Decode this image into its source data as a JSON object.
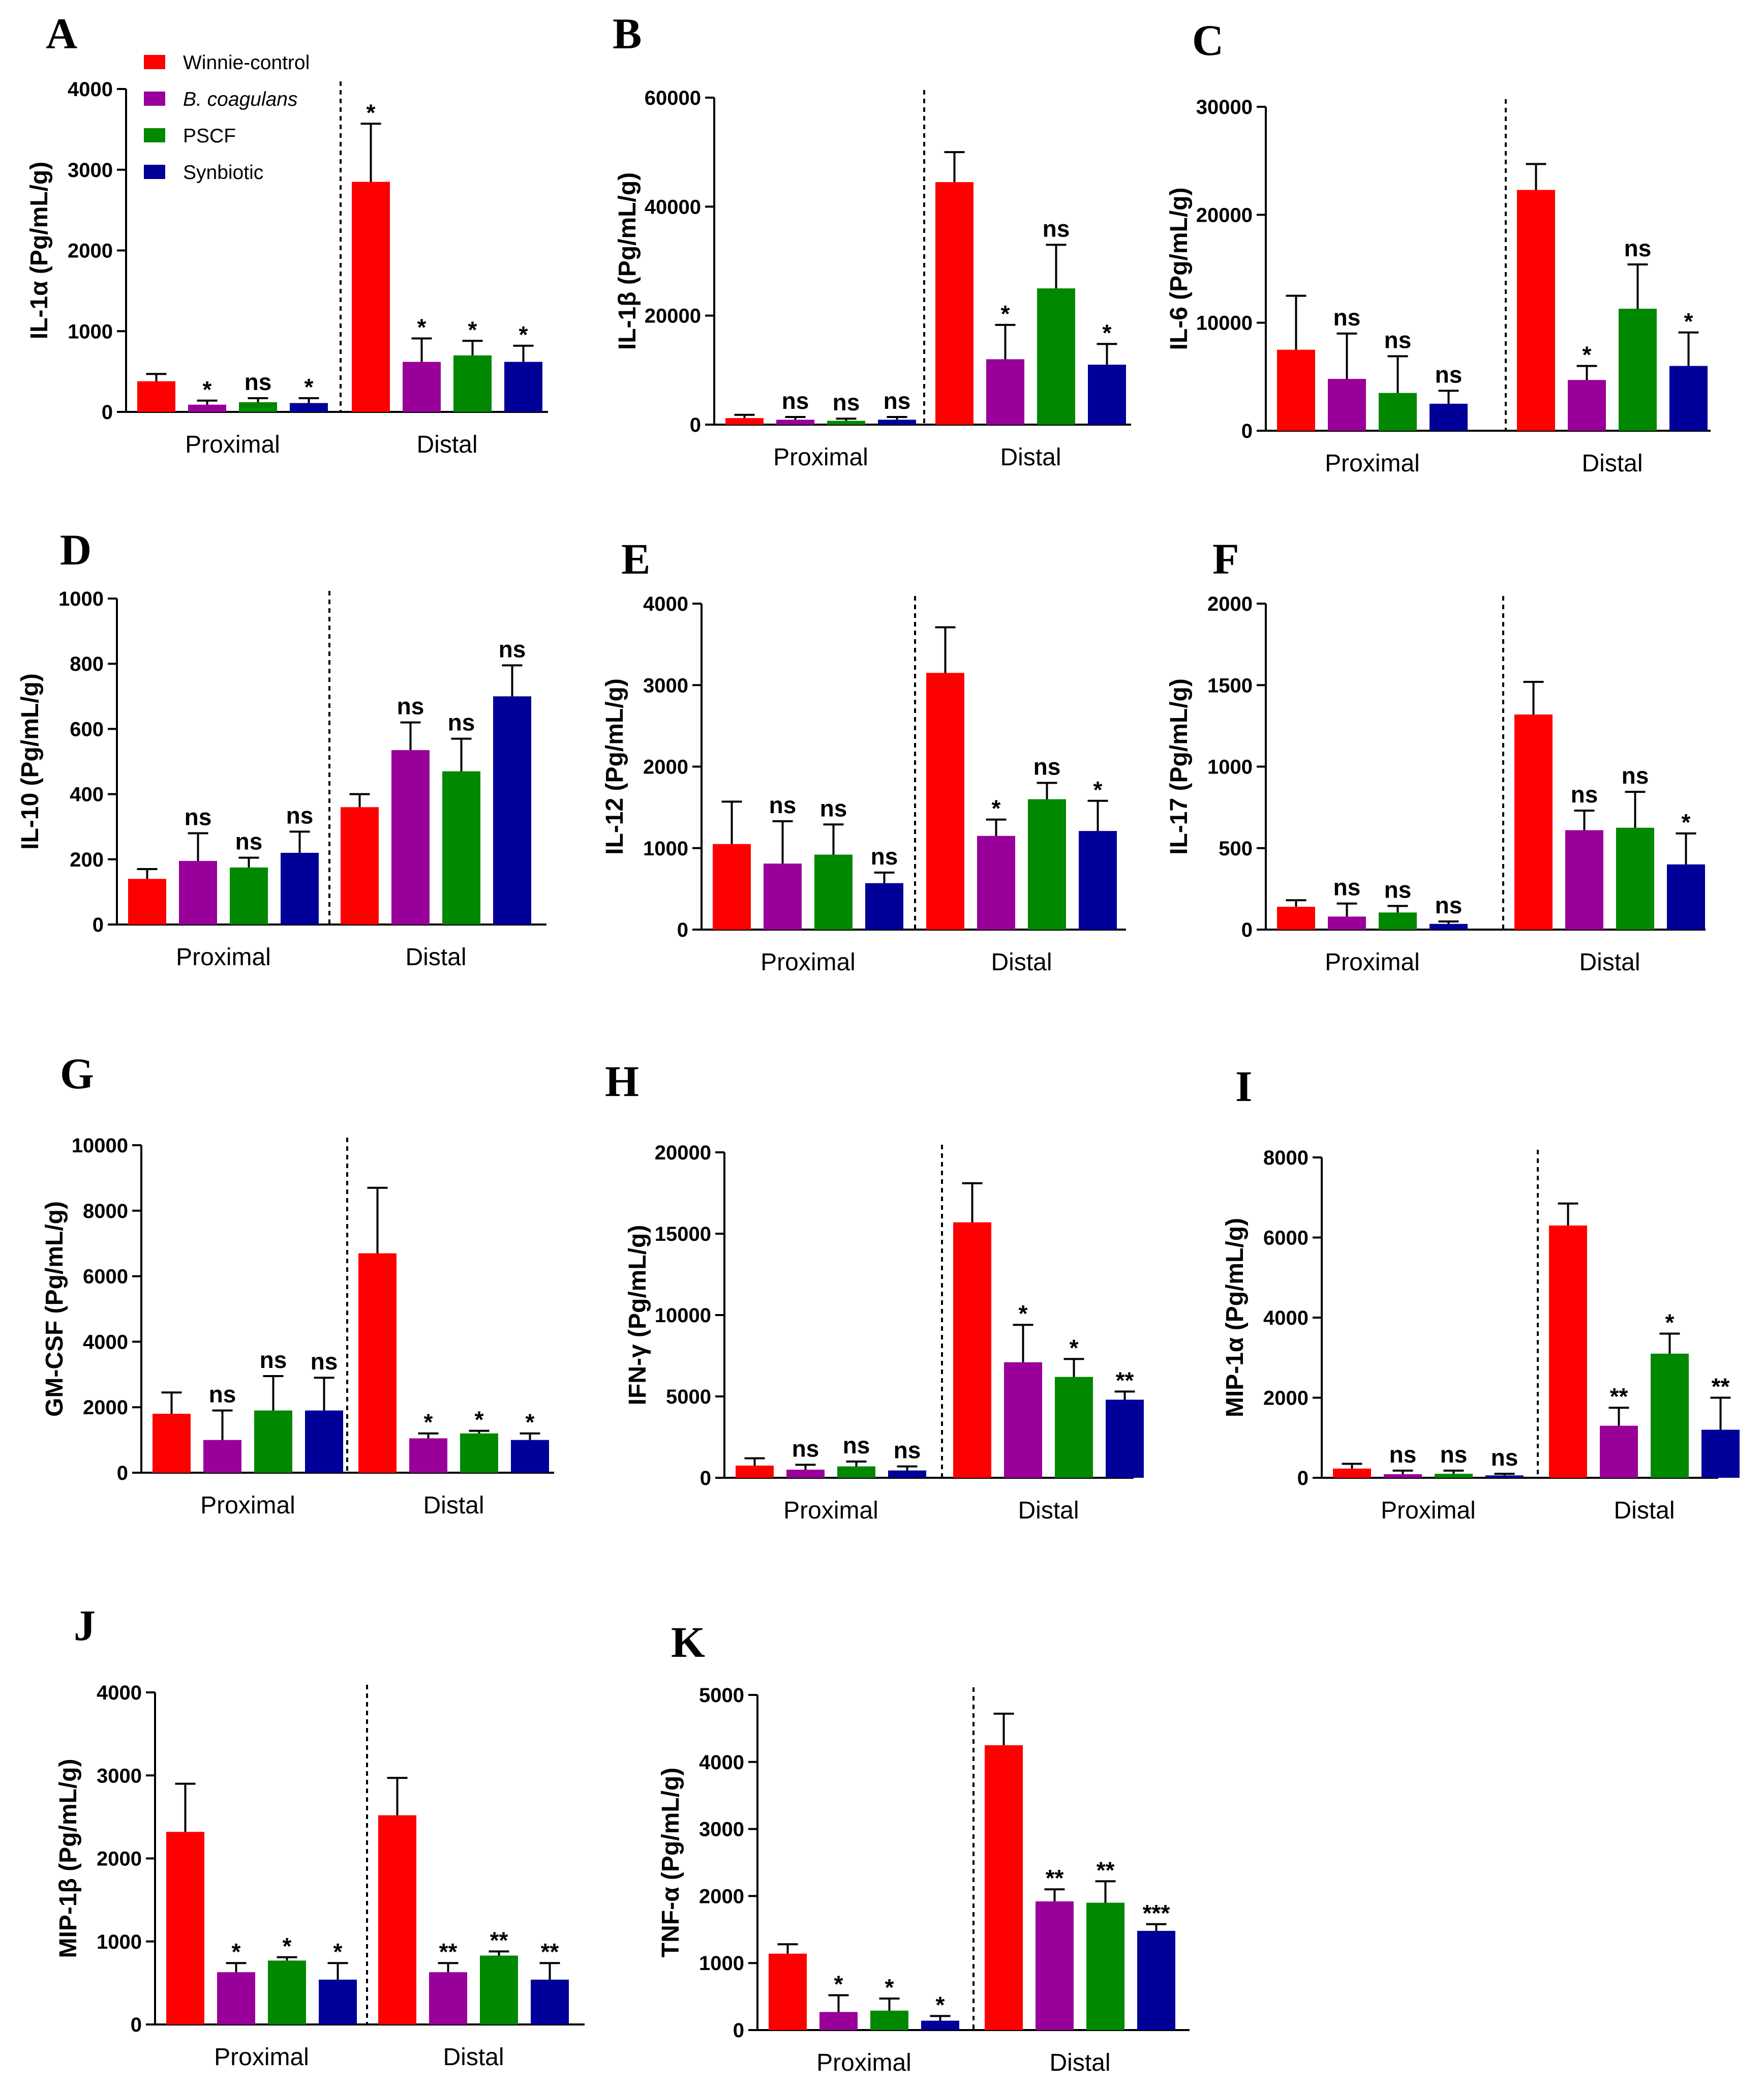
{
  "colors": [
    "#ff0000",
    "#990099",
    "#008800",
    "#000099"
  ],
  "legend": [
    "Winnie-control",
    "B. coagulans",
    "PSCF",
    "Synbiotic"
  ],
  "groups": [
    "Proximal",
    "Distal"
  ],
  "chart_data": [
    {
      "panel": "A",
      "type": "bar",
      "ylabel": "IL-1α (Pg/mL/g)",
      "ylim": [
        0,
        4000
      ],
      "yticks": [
        0,
        1000,
        2000,
        3000,
        4000
      ],
      "categories": [
        "Proximal",
        "Distal"
      ],
      "series": [
        {
          "name": "Winnie-control",
          "values": [
            380,
            2850
          ],
          "errors": [
            90,
            720
          ]
        },
        {
          "name": "B. coagulans",
          "values": [
            90,
            620
          ],
          "errors": [
            50,
            290
          ]
        },
        {
          "name": "PSCF",
          "values": [
            120,
            700
          ],
          "errors": [
            50,
            180
          ]
        },
        {
          "name": "Synbiotic",
          "values": [
            110,
            620
          ],
          "errors": [
            60,
            200
          ]
        }
      ],
      "significance": [
        [
          "",
          "*"
        ],
        [
          "*",
          "*"
        ],
        [
          "ns",
          "*"
        ],
        [
          "*",
          "*"
        ]
      ]
    },
    {
      "panel": "B",
      "type": "bar",
      "ylabel": "IL-1β (Pg/mL/g)",
      "ylim": [
        0,
        60000
      ],
      "yticks": [
        0,
        20000,
        40000,
        60000
      ],
      "categories": [
        "Proximal",
        "Distal"
      ],
      "series": [
        {
          "name": "Winnie-control",
          "values": [
            1200,
            44500
          ],
          "errors": [
            600,
            5500
          ]
        },
        {
          "name": "B. coagulans",
          "values": [
            900,
            12000
          ],
          "errors": [
            500,
            6300
          ]
        },
        {
          "name": "PSCF",
          "values": [
            700,
            25000
          ],
          "errors": [
            400,
            8000
          ]
        },
        {
          "name": "Synbiotic",
          "values": [
            900,
            11000
          ],
          "errors": [
            500,
            3800
          ]
        }
      ],
      "significance": [
        [
          "",
          ""
        ],
        [
          "ns",
          "*"
        ],
        [
          "ns",
          "ns"
        ],
        [
          "ns",
          "*"
        ]
      ]
    },
    {
      "panel": "C",
      "type": "bar",
      "ylabel": "IL-6 (Pg/mL/g)",
      "ylim": [
        0,
        30000
      ],
      "yticks": [
        0,
        10000,
        20000,
        30000
      ],
      "categories": [
        "Proximal",
        "Distal"
      ],
      "series": [
        {
          "name": "Winnie-control",
          "values": [
            7500,
            22300
          ],
          "errors": [
            5000,
            2400
          ]
        },
        {
          "name": "B. coagulans",
          "values": [
            4800,
            4700
          ],
          "errors": [
            4200,
            1300
          ]
        },
        {
          "name": "PSCF",
          "values": [
            3500,
            11300
          ],
          "errors": [
            3400,
            4100
          ]
        },
        {
          "name": "Synbiotic",
          "values": [
            2500,
            6000
          ],
          "errors": [
            1200,
            3100
          ]
        }
      ],
      "significance": [
        [
          "",
          ""
        ],
        [
          "ns",
          "*"
        ],
        [
          "ns",
          "ns"
        ],
        [
          "ns",
          "*"
        ]
      ]
    },
    {
      "panel": "D",
      "type": "bar",
      "ylabel": "IL-10 (Pg/mL/g)",
      "ylim": [
        0,
        1000
      ],
      "yticks": [
        0,
        200,
        400,
        600,
        800,
        1000
      ],
      "categories": [
        "Proximal",
        "Distal"
      ],
      "series": [
        {
          "name": "Winnie-control",
          "values": [
            140,
            360
          ],
          "errors": [
            30,
            40
          ]
        },
        {
          "name": "B. coagulans",
          "values": [
            195,
            535
          ],
          "errors": [
            85,
            85
          ]
        },
        {
          "name": "PSCF",
          "values": [
            175,
            470
          ],
          "errors": [
            30,
            100
          ]
        },
        {
          "name": "Synbiotic",
          "values": [
            220,
            700
          ],
          "errors": [
            65,
            95
          ]
        }
      ],
      "significance": [
        [
          "",
          ""
        ],
        [
          "ns",
          "ns"
        ],
        [
          "ns",
          "ns"
        ],
        [
          "ns",
          "ns"
        ]
      ]
    },
    {
      "panel": "E",
      "type": "bar",
      "ylabel": "IL-12 (Pg/mL/g)",
      "ylim": [
        0,
        4000
      ],
      "yticks": [
        0,
        1000,
        2000,
        3000,
        4000
      ],
      "categories": [
        "Proximal",
        "Distal"
      ],
      "series": [
        {
          "name": "Winnie-control",
          "values": [
            1050,
            3150
          ],
          "errors": [
            520,
            560
          ]
        },
        {
          "name": "B. coagulans",
          "values": [
            810,
            1150
          ],
          "errors": [
            520,
            200
          ]
        },
        {
          "name": "PSCF",
          "values": [
            920,
            1600
          ],
          "errors": [
            370,
            200
          ]
        },
        {
          "name": "Synbiotic",
          "values": [
            570,
            1210
          ],
          "errors": [
            130,
            370
          ]
        }
      ],
      "significance": [
        [
          "",
          ""
        ],
        [
          "ns",
          "*"
        ],
        [
          "ns",
          "ns"
        ],
        [
          "ns",
          "*"
        ]
      ]
    },
    {
      "panel": "F",
      "type": "bar",
      "ylabel": "IL-17 (Pg/mL/g)",
      "ylim": [
        0,
        2000
      ],
      "yticks": [
        0,
        500,
        1000,
        1500,
        2000
      ],
      "categories": [
        "Proximal",
        "Distal"
      ],
      "series": [
        {
          "name": "Winnie-control",
          "values": [
            140,
            1320
          ],
          "errors": [
            40,
            200
          ]
        },
        {
          "name": "B. coagulans",
          "values": [
            80,
            610
          ],
          "errors": [
            80,
            120
          ]
        },
        {
          "name": "PSCF",
          "values": [
            105,
            625
          ],
          "errors": [
            40,
            220
          ]
        },
        {
          "name": "Synbiotic",
          "values": [
            35,
            400
          ],
          "errors": [
            15,
            190
          ]
        }
      ],
      "significance": [
        [
          "",
          ""
        ],
        [
          "ns",
          "ns"
        ],
        [
          "ns",
          "ns"
        ],
        [
          "ns",
          "*"
        ]
      ]
    },
    {
      "panel": "G",
      "type": "bar",
      "ylabel": "GM-CSF (Pg/mL/g)",
      "ylim": [
        0,
        10000
      ],
      "yticks": [
        0,
        2000,
        4000,
        6000,
        8000,
        10000
      ],
      "categories": [
        "Proximal",
        "Distal"
      ],
      "series": [
        {
          "name": "Winnie-control",
          "values": [
            1800,
            6700
          ],
          "errors": [
            650,
            2000
          ]
        },
        {
          "name": "B. coagulans",
          "values": [
            1000,
            1050
          ],
          "errors": [
            900,
            150
          ]
        },
        {
          "name": "PSCF",
          "values": [
            1900,
            1200
          ],
          "errors": [
            1050,
            80
          ]
        },
        {
          "name": "Synbiotic",
          "values": [
            1900,
            1000
          ],
          "errors": [
            1000,
            200
          ]
        }
      ],
      "significance": [
        [
          "",
          ""
        ],
        [
          "ns",
          "*"
        ],
        [
          "ns",
          "*"
        ],
        [
          "ns",
          "*"
        ]
      ]
    },
    {
      "panel": "H",
      "type": "bar",
      "ylabel": "IFN-γ (Pg/mL/g)",
      "ylim": [
        0,
        20000
      ],
      "yticks": [
        0,
        5000,
        10000,
        15000,
        20000
      ],
      "categories": [
        "Proximal",
        "Distal"
      ],
      "series": [
        {
          "name": "Winnie-control",
          "values": [
            750,
            15700
          ],
          "errors": [
            450,
            2400
          ]
        },
        {
          "name": "B. coagulans",
          "values": [
            500,
            7100
          ],
          "errors": [
            300,
            2300
          ]
        },
        {
          "name": "PSCF",
          "values": [
            700,
            6200
          ],
          "errors": [
            300,
            1100
          ]
        },
        {
          "name": "Synbiotic",
          "values": [
            450,
            4800
          ],
          "errors": [
            250,
            500
          ]
        }
      ],
      "significance": [
        [
          "",
          ""
        ],
        [
          "ns",
          "*"
        ],
        [
          "ns",
          "*"
        ],
        [
          "ns",
          "**"
        ]
      ]
    },
    {
      "panel": "I",
      "type": "bar",
      "ylabel": "MIP-1α (Pg/mL/g)",
      "ylim": [
        0,
        8000
      ],
      "yticks": [
        0,
        2000,
        4000,
        6000,
        8000
      ],
      "categories": [
        "Proximal",
        "Distal"
      ],
      "series": [
        {
          "name": "Winnie-control",
          "values": [
            230,
            6300
          ],
          "errors": [
            120,
            550
          ]
        },
        {
          "name": "B. coagulans",
          "values": [
            90,
            1300
          ],
          "errors": [
            90,
            450
          ]
        },
        {
          "name": "PSCF",
          "values": [
            100,
            3100
          ],
          "errors": [
            80,
            500
          ]
        },
        {
          "name": "Synbiotic",
          "values": [
            60,
            1200
          ],
          "errors": [
            40,
            800
          ]
        }
      ],
      "significance": [
        [
          "",
          ""
        ],
        [
          "ns",
          "**"
        ],
        [
          "ns",
          "*"
        ],
        [
          "ns",
          "**"
        ]
      ]
    },
    {
      "panel": "J",
      "type": "bar",
      "ylabel": "MIP-1β (Pg/mL/g)",
      "ylim": [
        0,
        4000
      ],
      "yticks": [
        0,
        1000,
        2000,
        3000,
        4000
      ],
      "categories": [
        "Proximal",
        "Distal"
      ],
      "series": [
        {
          "name": "Winnie-control",
          "values": [
            2320,
            2520
          ],
          "errors": [
            580,
            450
          ]
        },
        {
          "name": "B. coagulans",
          "values": [
            630,
            630
          ],
          "errors": [
            110,
            110
          ]
        },
        {
          "name": "PSCF",
          "values": [
            770,
            830
          ],
          "errors": [
            40,
            50
          ]
        },
        {
          "name": "Synbiotic",
          "values": [
            540,
            540
          ],
          "errors": [
            200,
            200
          ]
        }
      ],
      "significance": [
        [
          "",
          ""
        ],
        [
          "*",
          "**"
        ],
        [
          "*",
          "**"
        ],
        [
          "*",
          "**"
        ]
      ]
    },
    {
      "panel": "K",
      "type": "bar",
      "ylabel": "TNF-α (Pg/mL/g)",
      "ylim": [
        0,
        5000
      ],
      "yticks": [
        0,
        1000,
        2000,
        3000,
        4000,
        5000
      ],
      "categories": [
        "Proximal",
        "Distal"
      ],
      "series": [
        {
          "name": "Winnie-control",
          "values": [
            1140,
            4250
          ],
          "errors": [
            140,
            470
          ]
        },
        {
          "name": "B. coagulans",
          "values": [
            270,
            1920
          ],
          "errors": [
            250,
            180
          ]
        },
        {
          "name": "PSCF",
          "values": [
            290,
            1900
          ],
          "errors": [
            180,
            320
          ]
        },
        {
          "name": "Synbiotic",
          "values": [
            140,
            1480
          ],
          "errors": [
            70,
            100
          ]
        }
      ],
      "significance": [
        [
          "",
          ""
        ],
        [
          "*",
          "**"
        ],
        [
          "*",
          "**"
        ],
        [
          "*",
          "***"
        ]
      ]
    }
  ]
}
